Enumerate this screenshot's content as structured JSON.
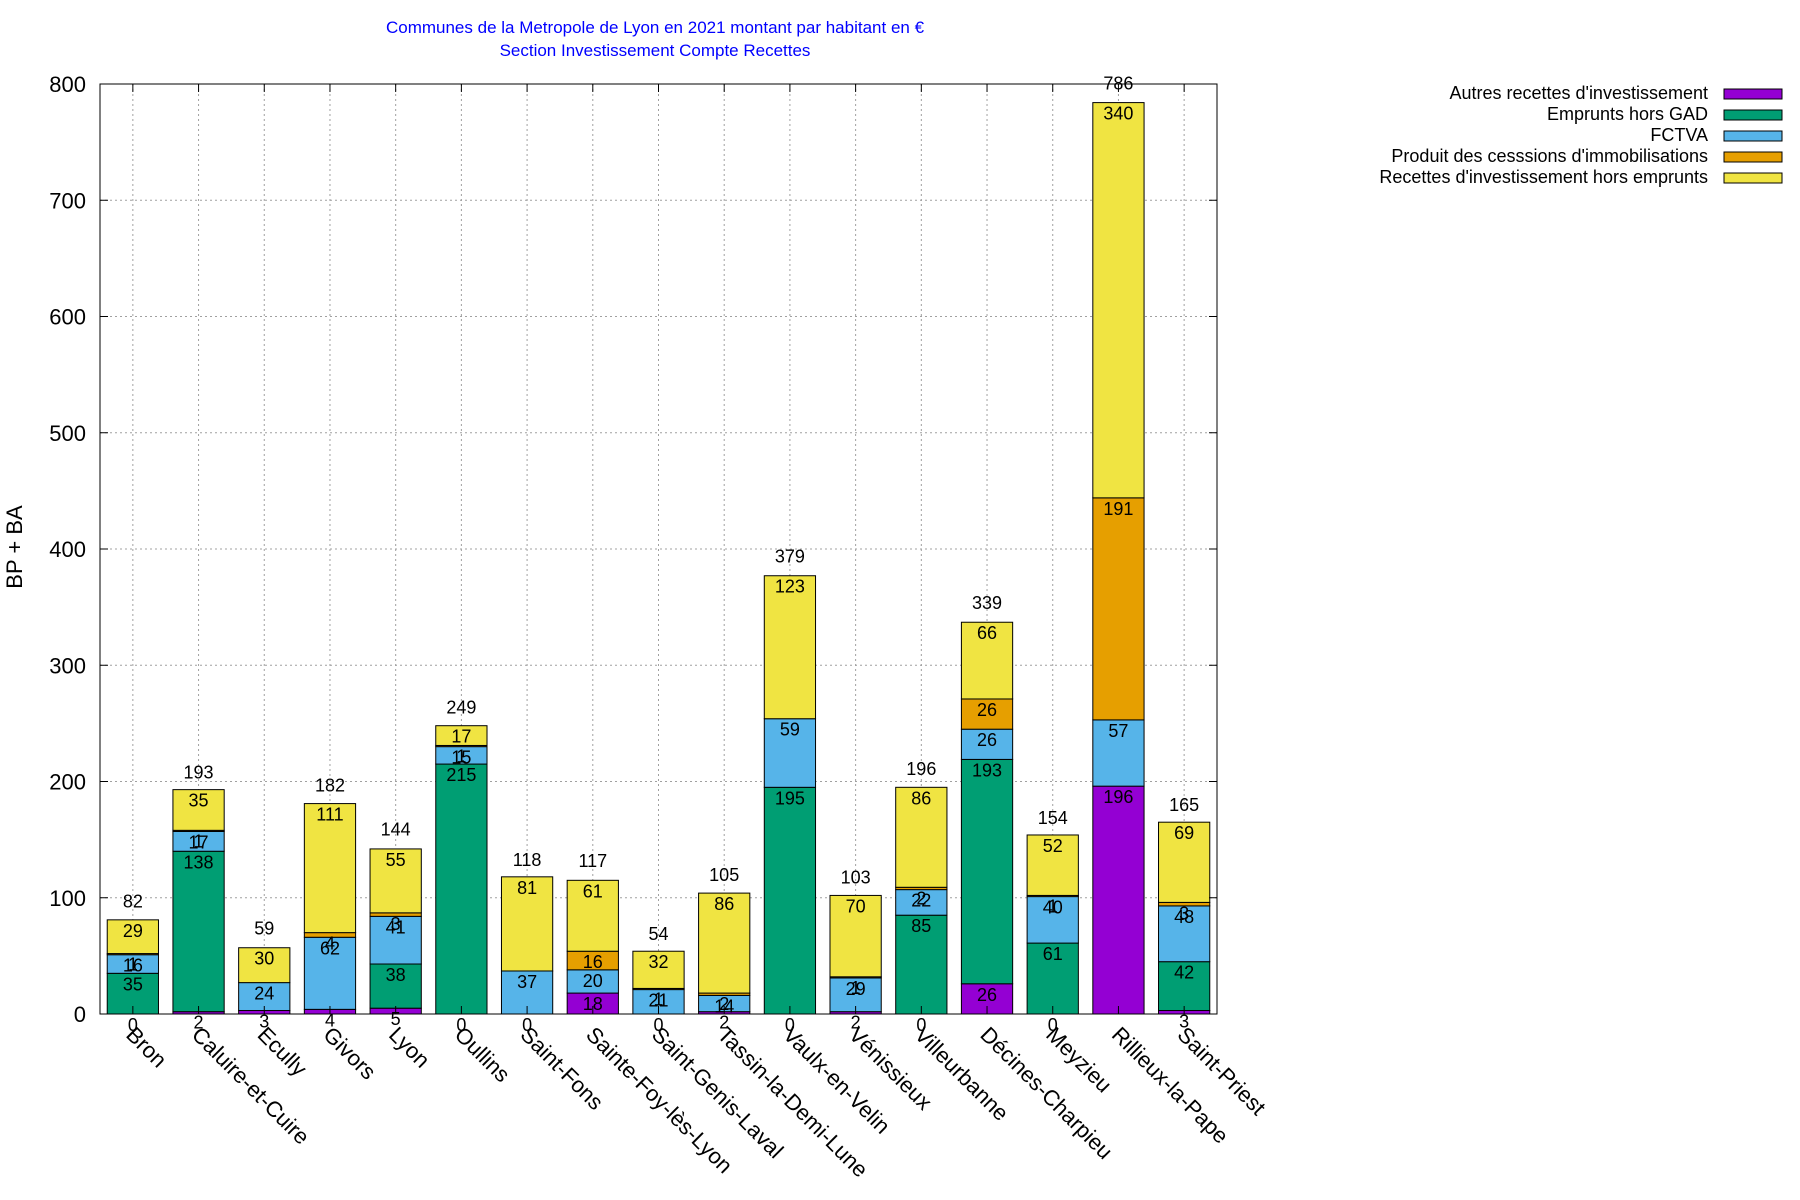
{
  "chart_data": {
    "type": "bar",
    "stacked": true,
    "title": "Communes de la Metropole de Lyon en 2021 montant par habitant en €",
    "subtitle": "Section Investissement Compte Recettes",
    "ylabel": "BP + BA",
    "ylim": [
      0,
      800
    ],
    "yticks": [
      0,
      100,
      200,
      300,
      400,
      500,
      600,
      700,
      800
    ],
    "grid": true,
    "legend_position": "top-right",
    "categories": [
      "Bron",
      "Caluire-et-Cuire",
      "Ecully",
      "Givors",
      "Lyon",
      "Oullins",
      "Saint-Fons",
      "Sainte-Foy-lès-Lyon",
      "Saint-Genis-Laval",
      "Tassin-la-Demi-Lune",
      "Vaulx-en-Velin",
      "Vénissieux",
      "Villeurbanne",
      "Décines-Charpieu",
      "Meyzieu",
      "Rillieux-la-Pape",
      "Saint-Priest"
    ],
    "series": [
      {
        "name": "Autres recettes d'investissement",
        "color": "#9400d3",
        "values": [
          0,
          2,
          3,
          4,
          5,
          0,
          0,
          18,
          0,
          2,
          0,
          2,
          0,
          26,
          0,
          196,
          3
        ]
      },
      {
        "name": "Emprunts hors GAD",
        "color": "#009e73",
        "values": [
          35,
          138,
          0,
          0,
          38,
          215,
          0,
          0,
          0,
          0,
          195,
          0,
          85,
          193,
          61,
          0,
          42
        ]
      },
      {
        "name": "FCTVA",
        "color": "#56b4e9",
        "values": [
          16,
          17,
          24,
          62,
          41,
          15,
          37,
          20,
          21,
          14,
          59,
          29,
          22,
          26,
          40,
          57,
          48
        ]
      },
      {
        "name": "Produit des cesssions d'immobilisations",
        "color": "#e69f00",
        "values": [
          1,
          1,
          0,
          4,
          3,
          1,
          0,
          16,
          1,
          2,
          0,
          1,
          2,
          26,
          1,
          191,
          3
        ]
      },
      {
        "name": "Recettes d'investissement hors emprunts",
        "color": "#f0e442",
        "values": [
          29,
          35,
          30,
          111,
          55,
          17,
          81,
          61,
          32,
          86,
          123,
          70,
          86,
          66,
          52,
          340,
          69
        ]
      }
    ],
    "stack_labels": [
      [
        "0",
        "2",
        "3",
        "4",
        "5",
        "0",
        "0",
        "18",
        "0",
        "2",
        "0",
        "2",
        "0",
        "26",
        "0",
        "196",
        "3"
      ],
      [
        "35",
        "138",
        "",
        "",
        "38",
        "215",
        "",
        "",
        "",
        "",
        "195",
        "",
        "85",
        "193",
        "61",
        "",
        "42"
      ],
      [
        "16",
        "17",
        "24",
        "62",
        "41",
        "15",
        "37",
        "20",
        "21",
        "14",
        "59",
        "29",
        "22",
        "26",
        "40",
        "57",
        "48"
      ],
      [
        "1",
        "1",
        "",
        "4",
        "3",
        "1",
        "",
        "16",
        "1",
        "2",
        "",
        "1",
        "2",
        "26",
        "1",
        "191",
        "3"
      ],
      [
        "29",
        "35",
        "30",
        "111",
        "55",
        "17",
        "81",
        "61",
        "32",
        "86",
        "123",
        "70",
        "86",
        "66",
        "52",
        "340",
        "69"
      ]
    ],
    "totals": [
      82,
      193,
      59,
      182,
      144,
      249,
      118,
      117,
      54,
      105,
      379,
      103,
      196,
      339,
      154,
      786,
      165
    ]
  }
}
